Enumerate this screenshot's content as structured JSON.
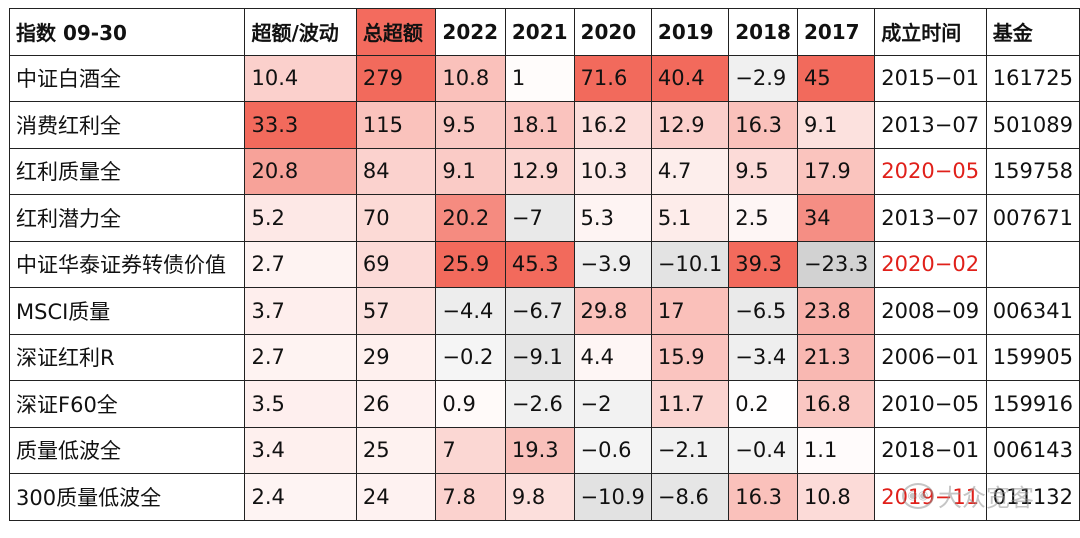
{
  "header": [
    "指数 09-30",
    "超额/波动",
    "总超额",
    "2022",
    "2021",
    "2020",
    "2019",
    "2018",
    "2017",
    "成立时间",
    "基金"
  ],
  "rows": [
    {
      "cells": [
        "中证白酒全",
        "10.4",
        "279",
        "10.8",
        "1",
        "71.6",
        "40.4",
        "−2.9",
        "45",
        "2015−01",
        "161725"
      ],
      "date_red": false
    },
    {
      "cells": [
        "消费红利全",
        "33.3",
        "115",
        "9.5",
        "18.1",
        "16.2",
        "12.9",
        "16.3",
        "9.1",
        "2013−07",
        "501089"
      ],
      "date_red": false
    },
    {
      "cells": [
        "红利质量全",
        "20.8",
        "84",
        "9.1",
        "12.9",
        "10.3",
        "4.7",
        "9.5",
        "17.9",
        "2020−05",
        "159758"
      ],
      "date_red": true
    },
    {
      "cells": [
        "红利潜力全",
        "5.2",
        "70",
        "20.2",
        "−7",
        "5.3",
        "5.1",
        "2.5",
        "34",
        "2013−07",
        "007671"
      ],
      "date_red": false
    },
    {
      "cells": [
        "中证华泰证券转债价值",
        "2.7",
        "69",
        "25.9",
        "45.3",
        "−3.9",
        "−10.1",
        "39.3",
        "−23.3",
        "2020−02",
        ""
      ],
      "date_red": true
    },
    {
      "cells": [
        "MSCI质量",
        "3.7",
        "57",
        "−4.4",
        "−6.7",
        "29.8",
        "17",
        "−6.5",
        "23.8",
        "2008−09",
        "006341"
      ],
      "date_red": false
    },
    {
      "cells": [
        "深证红利R",
        "2.7",
        "29",
        "−0.2",
        "−9.1",
        "4.4",
        "15.9",
        "−3.4",
        "21.3",
        "2006−01",
        "159905"
      ],
      "date_red": false
    },
    {
      "cells": [
        "深证F60全",
        "3.5",
        "26",
        "0.9",
        "−2.6",
        "−2",
        "11.7",
        "0.2",
        "16.8",
        "2010−05",
        "159916"
      ],
      "date_red": false
    },
    {
      "cells": [
        "质量低波全",
        "3.4",
        "25",
        "7",
        "19.3",
        "−0.6",
        "−2.1",
        "−0.4",
        "1.1",
        "2018−01",
        "006143"
      ],
      "date_red": false
    },
    {
      "cells": [
        "300质量低波全",
        "2.4",
        "24",
        "7.8",
        "9.8",
        "−10.9",
        "−8.6",
        "16.3",
        "10.8",
        "2019−11",
        "011132"
      ],
      "date_red": true
    }
  ],
  "colors": {
    "header_highlight": "#f36b5e",
    "negative_shade": "#dcdcdc",
    "positive_base": "#f26a5c",
    "date_red": "#e0201a"
  },
  "watermark": "大众宽客"
}
